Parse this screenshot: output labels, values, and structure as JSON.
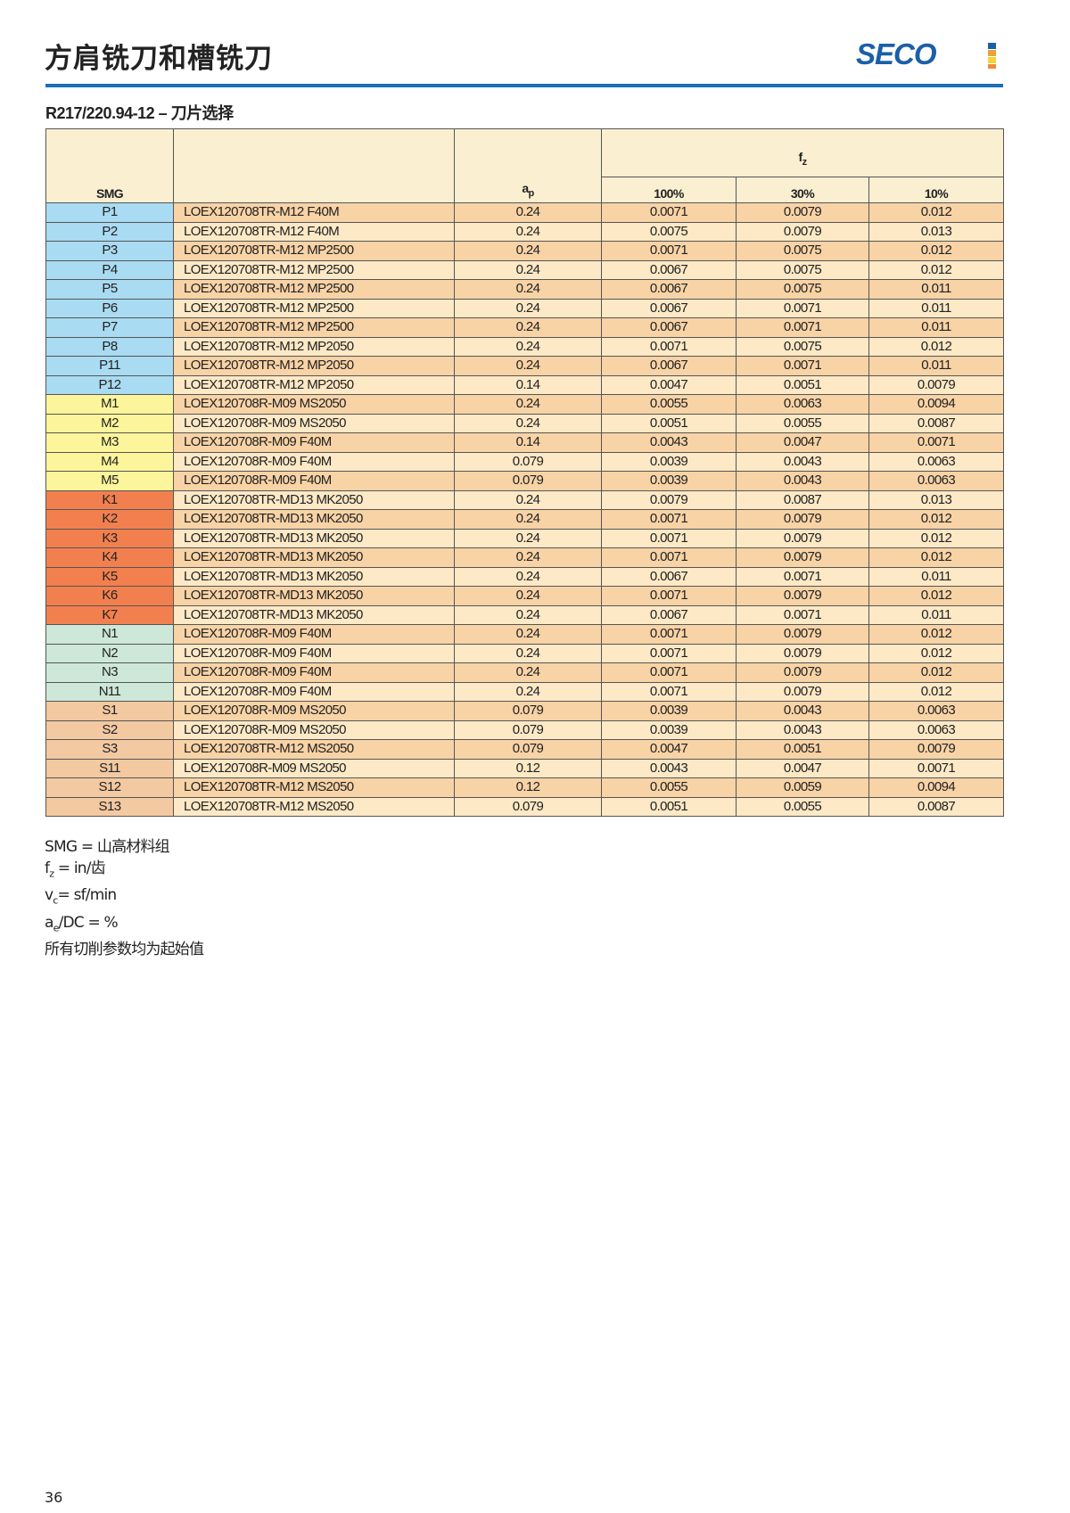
{
  "header": {
    "title": "方肩铣刀和槽铣刀",
    "logo": "SECO"
  },
  "subtitle": "R217/220.94-12 – 刀片选择",
  "table": {
    "columns": {
      "smg": "SMG",
      "ap": "a",
      "ap_sub": "p",
      "fz": "f",
      "fz_sub": "z",
      "pct": [
        "100%",
        "30%",
        "10%"
      ]
    },
    "rows": [
      [
        "P1",
        "LOEX120708TR-M12 F40M",
        "0.24",
        "0.0071",
        "0.0079",
        "0.012"
      ],
      [
        "P2",
        "LOEX120708TR-M12 F40M",
        "0.24",
        "0.0075",
        "0.0079",
        "0.013"
      ],
      [
        "P3",
        "LOEX120708TR-M12 MP2500",
        "0.24",
        "0.0071",
        "0.0075",
        "0.012"
      ],
      [
        "P4",
        "LOEX120708TR-M12 MP2500",
        "0.24",
        "0.0067",
        "0.0075",
        "0.012"
      ],
      [
        "P5",
        "LOEX120708TR-M12 MP2500",
        "0.24",
        "0.0067",
        "0.0075",
        "0.011"
      ],
      [
        "P6",
        "LOEX120708TR-M12 MP2500",
        "0.24",
        "0.0067",
        "0.0071",
        "0.011"
      ],
      [
        "P7",
        "LOEX120708TR-M12 MP2500",
        "0.24",
        "0.0067",
        "0.0071",
        "0.011"
      ],
      [
        "P8",
        "LOEX120708TR-M12 MP2050",
        "0.24",
        "0.0071",
        "0.0075",
        "0.012"
      ],
      [
        "P11",
        "LOEX120708TR-M12 MP2050",
        "0.24",
        "0.0067",
        "0.0071",
        "0.011"
      ],
      [
        "P12",
        "LOEX120708TR-M12 MP2050",
        "0.14",
        "0.0047",
        "0.0051",
        "0.0079"
      ],
      [
        "M1",
        "LOEX120708R-M09 MS2050",
        "0.24",
        "0.0055",
        "0.0063",
        "0.0094"
      ],
      [
        "M2",
        "LOEX120708R-M09 MS2050",
        "0.24",
        "0.0051",
        "0.0055",
        "0.0087"
      ],
      [
        "M3",
        "LOEX120708R-M09 F40M",
        "0.14",
        "0.0043",
        "0.0047",
        "0.0071"
      ],
      [
        "M4",
        "LOEX120708R-M09 F40M",
        "0.079",
        "0.0039",
        "0.0043",
        "0.0063"
      ],
      [
        "M5",
        "LOEX120708R-M09 F40M",
        "0.079",
        "0.0039",
        "0.0043",
        "0.0063"
      ],
      [
        "K1",
        "LOEX120708TR-MD13 MK2050",
        "0.24",
        "0.0079",
        "0.0087",
        "0.013"
      ],
      [
        "K2",
        "LOEX120708TR-MD13 MK2050",
        "0.24",
        "0.0071",
        "0.0079",
        "0.012"
      ],
      [
        "K3",
        "LOEX120708TR-MD13 MK2050",
        "0.24",
        "0.0071",
        "0.0079",
        "0.012"
      ],
      [
        "K4",
        "LOEX120708TR-MD13 MK2050",
        "0.24",
        "0.0071",
        "0.0079",
        "0.012"
      ],
      [
        "K5",
        "LOEX120708TR-MD13 MK2050",
        "0.24",
        "0.0067",
        "0.0071",
        "0.011"
      ],
      [
        "K6",
        "LOEX120708TR-MD13 MK2050",
        "0.24",
        "0.0071",
        "0.0079",
        "0.012"
      ],
      [
        "K7",
        "LOEX120708TR-MD13 MK2050",
        "0.24",
        "0.0067",
        "0.0071",
        "0.011"
      ],
      [
        "N1",
        "LOEX120708R-M09 F40M",
        "0.24",
        "0.0071",
        "0.0079",
        "0.012"
      ],
      [
        "N2",
        "LOEX120708R-M09 F40M",
        "0.24",
        "0.0071",
        "0.0079",
        "0.012"
      ],
      [
        "N3",
        "LOEX120708R-M09 F40M",
        "0.24",
        "0.0071",
        "0.0079",
        "0.012"
      ],
      [
        "N11",
        "LOEX120708R-M09 F40M",
        "0.24",
        "0.0071",
        "0.0079",
        "0.012"
      ],
      [
        "S1",
        "LOEX120708R-M09 MS2050",
        "0.079",
        "0.0039",
        "0.0043",
        "0.0063"
      ],
      [
        "S2",
        "LOEX120708R-M09 MS2050",
        "0.079",
        "0.0039",
        "0.0043",
        "0.0063"
      ],
      [
        "S3",
        "LOEX120708TR-M12 MS2050",
        "0.079",
        "0.0047",
        "0.0051",
        "0.0079"
      ],
      [
        "S11",
        "LOEX120708R-M09 MS2050",
        "0.12",
        "0.0043",
        "0.0047",
        "0.0071"
      ],
      [
        "S12",
        "LOEX120708TR-M12 MS2050",
        "0.12",
        "0.0055",
        "0.0059",
        "0.0094"
      ],
      [
        "S13",
        "LOEX120708TR-M12 MS2050",
        "0.079",
        "0.0051",
        "0.0055",
        "0.0087"
      ]
    ]
  },
  "notes": [
    [
      "SMG = 山高材料组"
    ],
    [
      "f",
      "z",
      " = in/齿"
    ],
    [
      "v",
      "c",
      "= sf/min"
    ],
    [
      "a",
      "e",
      "/DC = %"
    ],
    [
      "所有切削参数均为起始值"
    ]
  ],
  "page_number": "36"
}
